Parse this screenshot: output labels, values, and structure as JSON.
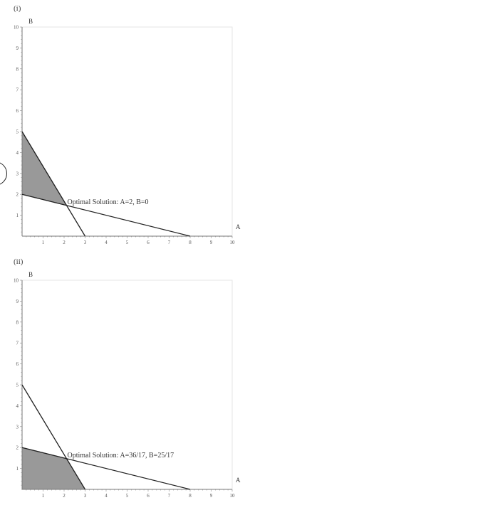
{
  "chart_data": [
    {
      "panel_label": "(i)",
      "type": "area",
      "xlabel": "A",
      "ylabel": "B",
      "xlim": [
        0,
        10
      ],
      "ylim": [
        0,
        10
      ],
      "x_ticks": [
        1,
        2,
        3,
        4,
        5,
        6,
        7,
        8,
        9,
        10
      ],
      "y_ticks": [
        1,
        2,
        3,
        4,
        5,
        6,
        7,
        8,
        9,
        10
      ],
      "lines": [
        {
          "points": [
            [
              0,
              5
            ],
            [
              3,
              0
            ]
          ]
        },
        {
          "points": [
            [
              0,
              2
            ],
            [
              8,
              0
            ]
          ]
        }
      ],
      "feasible_region": [
        [
          0,
          5
        ],
        [
          0,
          2
        ],
        [
          2.1176,
          1.4706
        ]
      ],
      "region_color": "#999999",
      "annotation": {
        "text": "Optimal Solution: A=2, B=0",
        "at": [
          2.1176,
          1.4706
        ]
      }
    },
    {
      "panel_label": "(ii)",
      "type": "area",
      "xlabel": "A",
      "ylabel": "B",
      "xlim": [
        0,
        10
      ],
      "ylim": [
        0,
        10
      ],
      "x_ticks": [
        1,
        2,
        3,
        4,
        5,
        6,
        7,
        8,
        9,
        10
      ],
      "y_ticks": [
        1,
        2,
        3,
        4,
        5,
        6,
        7,
        8,
        9,
        10
      ],
      "lines": [
        {
          "points": [
            [
              0,
              5
            ],
            [
              3,
              0
            ]
          ]
        },
        {
          "points": [
            [
              0,
              2
            ],
            [
              8,
              0
            ]
          ]
        }
      ],
      "feasible_region": [
        [
          0,
          0
        ],
        [
          0,
          2
        ],
        [
          2.1176,
          1.4706
        ],
        [
          3,
          0
        ]
      ],
      "region_color": "#999999",
      "annotation": {
        "text": "Optimal Solution: A=36/17, B=25/17",
        "at": [
          2.1176,
          1.4706
        ]
      }
    }
  ]
}
